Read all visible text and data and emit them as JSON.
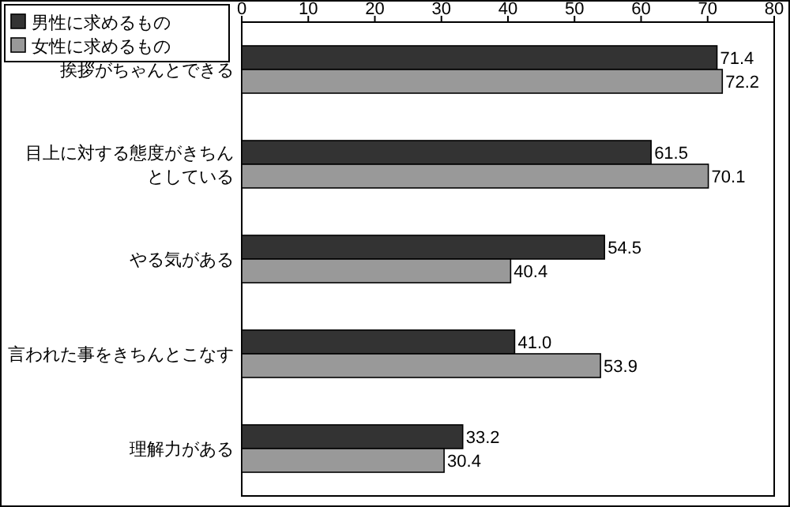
{
  "chart_data": {
    "type": "bar",
    "orientation": "horizontal",
    "categories": [
      "挨拶がちゃんとできる",
      "目上に対する態度がきちんとしている",
      "やる気がある",
      "言われた事をきちんとこなす",
      "理解力がある"
    ],
    "series": [
      {
        "name": "男性に求めるもの",
        "color": "#333333",
        "values": [
          71.4,
          61.5,
          54.5,
          41.0,
          33.2
        ],
        "value_labels": [
          "71.4",
          "61.5",
          "54.5",
          "41.0",
          "33.2"
        ]
      },
      {
        "name": "女性に求めるもの",
        "color": "#999999",
        "values": [
          72.2,
          70.1,
          40.4,
          53.9,
          30.4
        ],
        "value_labels": [
          "72.2",
          "70.1",
          "40.4",
          "53.9",
          "30.4"
        ]
      }
    ],
    "xlim": [
      0,
      80
    ],
    "xticks": [
      0,
      10,
      20,
      30,
      40,
      50,
      60,
      70,
      80
    ],
    "grid": false,
    "legend": "top left"
  }
}
